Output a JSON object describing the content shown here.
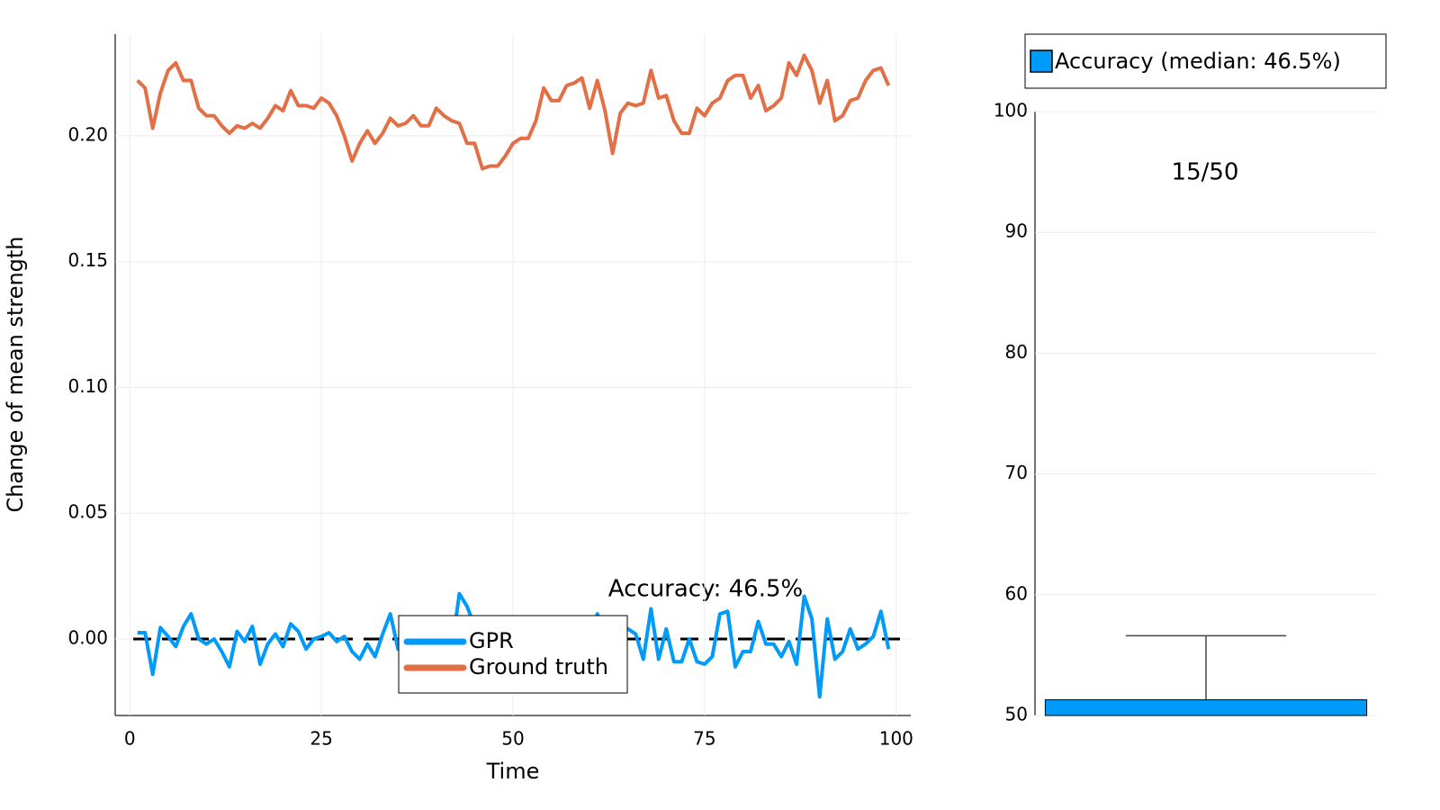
{
  "chart_data": [
    {
      "type": "line",
      "xlabel": "Time",
      "ylabel": "Change of mean strength",
      "annotation": "Accuracy: 46.5%",
      "x": [
        1,
        2,
        3,
        4,
        5,
        6,
        7,
        8,
        9,
        10,
        11,
        12,
        13,
        14,
        15,
        16,
        17,
        18,
        19,
        20,
        21,
        22,
        23,
        24,
        25,
        26,
        27,
        28,
        29,
        30,
        31,
        32,
        33,
        34,
        35,
        36,
        37,
        38,
        39,
        40,
        41,
        42,
        43,
        44,
        45,
        46,
        47,
        48,
        49,
        50,
        51,
        52,
        53,
        54,
        55,
        56,
        57,
        58,
        59,
        60,
        61,
        62,
        63,
        64,
        65,
        66,
        67,
        68,
        69,
        70,
        71,
        72,
        73,
        74,
        75,
        76,
        77,
        78,
        79,
        80,
        81,
        82,
        83,
        84,
        85,
        86,
        87,
        88,
        89,
        90,
        91,
        92,
        93,
        94,
        95,
        96,
        97,
        98,
        99
      ],
      "series": [
        {
          "name": "GPR",
          "color": "#009af9",
          "values": [
            0.0025,
            0.0025,
            -0.014,
            0.0045,
            0.001,
            -0.003,
            0.005,
            0.01,
            0.0,
            -0.002,
            0.0,
            -0.005,
            -0.011,
            0.003,
            -0.001,
            0.005,
            -0.01,
            -0.002,
            0.002,
            -0.003,
            0.006,
            0.003,
            -0.004,
            0.0,
            0.001,
            0.0025,
            -0.001,
            0.001,
            -0.005,
            -0.008,
            -0.002,
            -0.007,
            0.002,
            0.01,
            -0.004,
            0.001,
            -0.003,
            0.002,
            -0.002,
            0.001,
            0.0,
            -0.004,
            0.018,
            0.013,
            0.005,
            0.002,
            -0.003,
            0.004,
            0.0,
            -0.002,
            0.003,
            -0.001,
            0.002,
            -0.003,
            0.001,
            0.004,
            -0.002,
            0.003,
            0.0,
            -0.004,
            0.01,
            0.002,
            -0.003,
            0.006,
            0.004,
            0.002,
            -0.008,
            0.012,
            -0.008,
            0.004,
            -0.009,
            -0.009,
            0.0,
            -0.009,
            -0.01,
            -0.007,
            0.01,
            0.011,
            -0.011,
            -0.005,
            -0.005,
            0.007,
            -0.002,
            -0.002,
            -0.007,
            -0.001,
            -0.01,
            0.017,
            0.008,
            -0.023,
            0.008,
            -0.008,
            -0.005,
            0.004,
            -0.004,
            -0.002,
            0.001,
            0.011,
            -0.004
          ]
        },
        {
          "name": "Ground truth",
          "color": "#e26f46",
          "values": [
            0.222,
            0.219,
            0.203,
            0.217,
            0.226,
            0.229,
            0.222,
            0.222,
            0.211,
            0.208,
            0.208,
            0.204,
            0.201,
            0.204,
            0.203,
            0.205,
            0.203,
            0.207,
            0.212,
            0.21,
            0.218,
            0.212,
            0.212,
            0.211,
            0.215,
            0.213,
            0.208,
            0.2,
            0.19,
            0.197,
            0.202,
            0.197,
            0.201,
            0.207,
            0.204,
            0.205,
            0.208,
            0.204,
            0.204,
            0.211,
            0.208,
            0.206,
            0.205,
            0.197,
            0.197,
            0.187,
            0.188,
            0.188,
            0.192,
            0.197,
            0.199,
            0.199,
            0.206,
            0.219,
            0.214,
            0.214,
            0.22,
            0.221,
            0.223,
            0.211,
            0.222,
            0.21,
            0.193,
            0.209,
            0.213,
            0.212,
            0.213,
            0.226,
            0.215,
            0.216,
            0.206,
            0.201,
            0.201,
            0.211,
            0.208,
            0.213,
            0.215,
            0.222,
            0.224,
            0.224,
            0.215,
            0.22,
            0.21,
            0.212,
            0.215,
            0.229,
            0.224,
            0.232,
            0.226,
            0.213,
            0.222,
            0.206,
            0.208,
            0.214,
            0.215,
            0.222,
            0.226,
            0.227,
            0.22
          ]
        }
      ],
      "hline": 0,
      "xlim": [
        -1.9,
        101.9
      ],
      "xticks": [
        0,
        25,
        50,
        75,
        100
      ],
      "ylim": [
        -0.0304,
        0.2404
      ],
      "yticks": [
        {
          "value": 0,
          "label": "0.00"
        },
        {
          "value": 0.05,
          "label": "0.05"
        },
        {
          "value": 0.1,
          "label": "0.10"
        },
        {
          "value": 0.15,
          "label": "0.15"
        },
        {
          "value": 0.2,
          "label": "0.20"
        }
      ],
      "grid": true,
      "legend": "bottom"
    },
    {
      "type": "bar",
      "annotation": "15/50",
      "categories": [
        null
      ],
      "series": [
        {
          "name": "Accuracy (median: 46.5%)",
          "color": "#009af9",
          "values": [
            51.3
          ],
          "errors": [
            5.3
          ]
        }
      ],
      "ylim": [
        50,
        100
      ],
      "yticks": [
        50,
        60,
        70,
        80,
        90,
        100
      ],
      "grid": true,
      "legend": "top"
    }
  ]
}
